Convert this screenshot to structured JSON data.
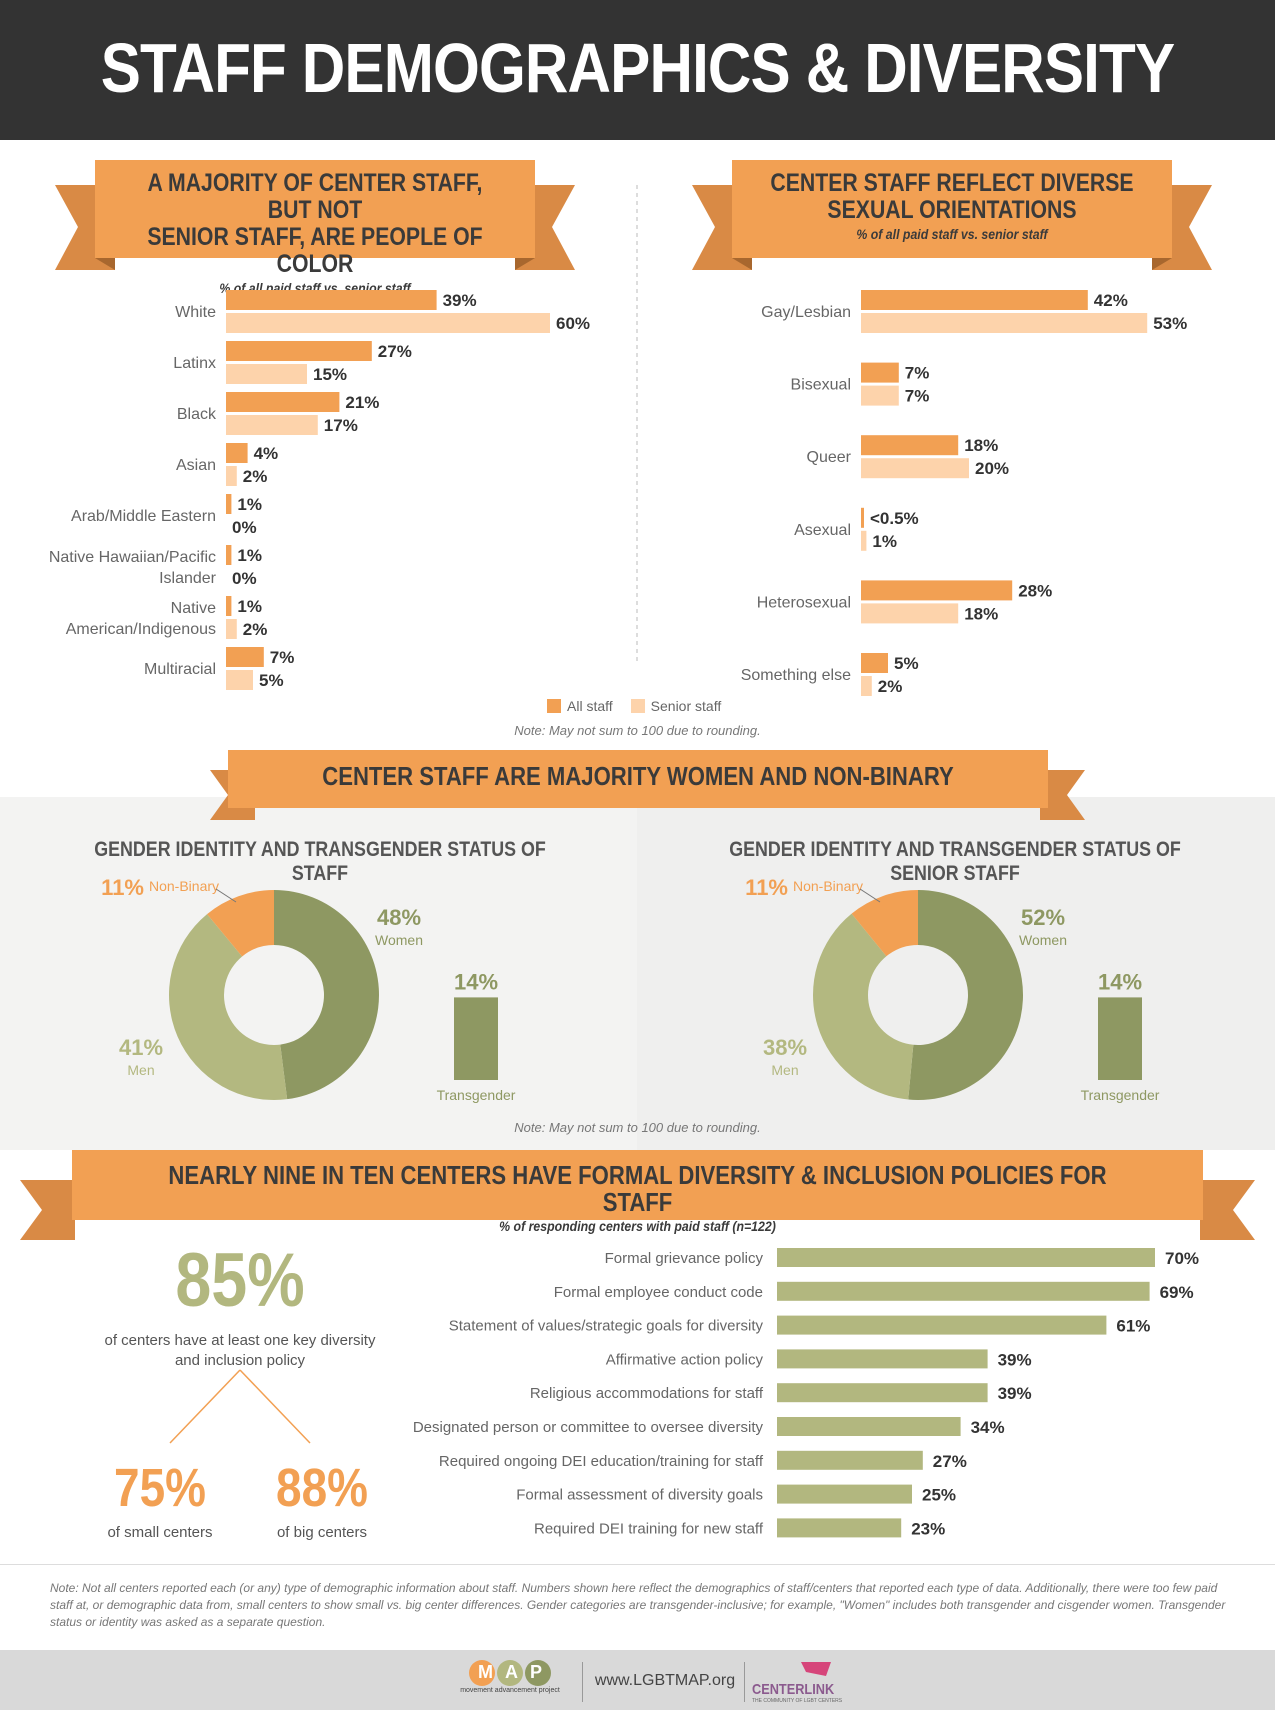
{
  "title": "STAFF DEMOGRAPHICS & DIVERSITY",
  "colors": {
    "orange": "#f2a053",
    "orange_dark": "#d98a45",
    "peach": "#fdd3ab",
    "olive_dark": "#8e9862",
    "olive_light": "#b3b880",
    "olive_bar": "#b2b77f",
    "title_bg": "#333333"
  },
  "race_section": {
    "title_line1": "A MAJORITY OF CENTER STAFF, BUT NOT",
    "title_line2": "SENIOR STAFF, ARE PEOPLE OF COLOR",
    "subtitle": "% of all paid staff vs. senior staff"
  },
  "orientation_section": {
    "title_line1": "CENTER STAFF REFLECT DIVERSE",
    "title_line2": "SEXUAL ORIENTATIONS",
    "subtitle": "% of all paid staff vs. senior staff"
  },
  "legend": {
    "all": "All staff",
    "senior": "Senior staff"
  },
  "note_rounding": "Note: May not sum to 100 due to rounding.",
  "gender_section": {
    "title": "CENTER STAFF ARE MAJORITY WOMEN AND NON-BINARY",
    "left_head": "GENDER IDENTITY AND TRANSGENDER STATUS OF STAFF",
    "right_head": "GENDER IDENTITY AND TRANSGENDER STATUS OF SENIOR STAFF"
  },
  "policy_section": {
    "title": "NEARLY NINE IN TEN CENTERS HAVE FORMAL DIVERSITY & INCLUSION POLICIES FOR STAFF",
    "subtitle": "% of responding centers with paid staff (n=122)",
    "big_pct": "85%",
    "big_desc_line1": "of centers have at least one key diversity",
    "big_desc_line2": "and inclusion policy",
    "small_pct": "75%",
    "small_label": "of small centers",
    "bigc_pct": "88%",
    "bigc_label": "of big centers"
  },
  "footnote": "Note: Not all centers reported each (or any) type of demographic information about staff. Numbers shown here reflect the demographics of staff/centers that reported each type of data. Additionally, there were too few paid staff at, or demographic data from, small centers to show small vs. big center differences. Gender categories are transgender-inclusive; for example, \"Women\" includes both transgender and cisgender women. Transgender status or identity was asked as a separate question.",
  "footer": {
    "map_logo": "MAP",
    "map_sub": "movement advancement project",
    "url": "www.LGBTMAP.org",
    "centerlink": "CENTERLINK",
    "centerlink_sub": "THE COMMUNITY OF LGBT CENTERS"
  },
  "chart_data": [
    {
      "type": "bar",
      "name": "race",
      "categories": [
        [
          "White"
        ],
        [
          "Latinx"
        ],
        [
          "Black"
        ],
        [
          "Asian"
        ],
        [
          "Arab/Middle Eastern"
        ],
        [
          "Native Hawaiian/Pacific",
          "Islander"
        ],
        [
          "Native",
          "American/Indigenous"
        ],
        [
          "Multiracial"
        ]
      ],
      "series": [
        {
          "name": "All staff",
          "values": [
            39,
            27,
            21,
            4,
            1,
            1,
            1,
            7
          ],
          "labels": [
            "39%",
            "27%",
            "21%",
            "4%",
            "1%",
            "1%",
            "1%",
            "7%"
          ]
        },
        {
          "name": "Senior staff",
          "values": [
            60,
            15,
            17,
            2,
            0,
            0,
            2,
            5
          ],
          "labels": [
            "60%",
            "15%",
            "17%",
            "2%",
            "0%",
            "0%",
            "2%",
            "5%"
          ]
        }
      ]
    },
    {
      "type": "bar",
      "name": "orientation",
      "categories": [
        [
          "Gay/Lesbian"
        ],
        [
          "Bisexual"
        ],
        [
          "Queer"
        ],
        [
          "Asexual"
        ],
        [
          "Heterosexual"
        ],
        [
          "Something else"
        ]
      ],
      "series": [
        {
          "name": "All staff",
          "values": [
            42,
            7,
            18,
            0.3,
            28,
            5
          ],
          "labels": [
            "42%",
            "7%",
            "18%",
            "<0.5%",
            "28%",
            "5%"
          ]
        },
        {
          "name": "Senior staff",
          "values": [
            53,
            7,
            20,
            1,
            18,
            2
          ],
          "labels": [
            "53%",
            "7%",
            "20%",
            "1%",
            "18%",
            "2%"
          ]
        }
      ]
    },
    {
      "type": "pie",
      "name": "gender_staff",
      "slices": [
        {
          "label": "Women",
          "value": 48,
          "pct": "48%"
        },
        {
          "label": "Men",
          "value": 41,
          "pct": "41%"
        },
        {
          "label": "Non-Binary",
          "value": 11,
          "pct": "11%"
        }
      ],
      "transgender": {
        "label": "Transgender",
        "value": 14,
        "pct": "14%"
      }
    },
    {
      "type": "pie",
      "name": "gender_senior",
      "slices": [
        {
          "label": "Women",
          "value": 52,
          "pct": "52%"
        },
        {
          "label": "Men",
          "value": 38,
          "pct": "38%"
        },
        {
          "label": "Non-Binary",
          "value": 11,
          "pct": "11%"
        }
      ],
      "transgender": {
        "label": "Transgender",
        "value": 14,
        "pct": "14%"
      }
    },
    {
      "type": "bar",
      "name": "policies",
      "categories": [
        "Formal grievance policy",
        "Formal employee conduct code",
        "Statement of values/strategic goals for diversity",
        "Affirmative action policy",
        "Religious accommodations for staff",
        "Designated person or committee to oversee diversity",
        "Required ongoing DEI education/training for staff",
        "Formal assessment of diversity goals",
        "Required DEI training for new staff"
      ],
      "values": [
        70,
        69,
        61,
        39,
        39,
        34,
        27,
        25,
        23
      ],
      "labels": [
        "70%",
        "69%",
        "61%",
        "39%",
        "39%",
        "34%",
        "27%",
        "25%",
        "23%"
      ]
    }
  ]
}
